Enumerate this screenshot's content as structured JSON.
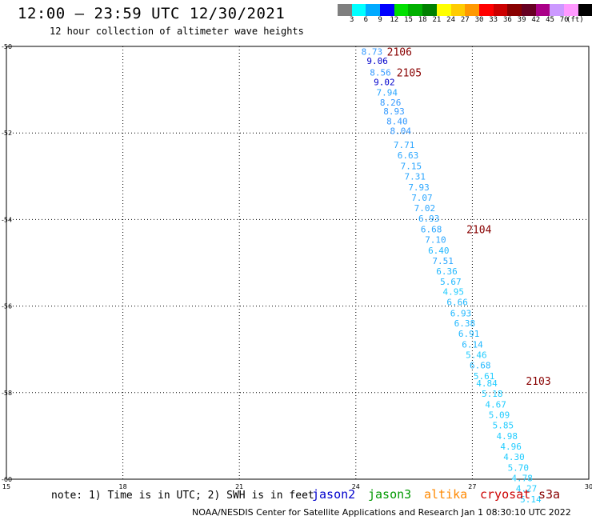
{
  "header": {
    "title": "12:00 – 23:59 UTC 12/30/2021",
    "subtitle": "12 hour collection of altimeter wave heights"
  },
  "colorbar": {
    "colors": [
      "#7f7f7f",
      "#00ffff",
      "#00aaff",
      "#0000ff",
      "#00e000",
      "#00b000",
      "#008000",
      "#ffff00",
      "#ffcc00",
      "#ff9900",
      "#ff0000",
      "#cc0000",
      "#880000",
      "#660022",
      "#aa0088",
      "#cc99ff",
      "#ff99ff",
      "#000000"
    ],
    "labels": [
      "3",
      "6",
      "9",
      "12",
      "15",
      "18",
      "21",
      "24",
      "27",
      "30",
      "33",
      "36",
      "39",
      "42",
      "45",
      "70"
    ],
    "unit": "(ft)"
  },
  "chart_data": {
    "type": "scatter",
    "xlim": [
      15,
      30
    ],
    "ylim": [
      -60,
      -50
    ],
    "xticks": [
      "15",
      "18",
      "21",
      "24",
      "27",
      "30"
    ],
    "yticks": [
      "-50",
      "-52",
      "-54",
      "-56",
      "-58",
      "-60"
    ],
    "grid": true,
    "points": [
      {
        "x": 24.14,
        "y": -50.12,
        "v": "8.73",
        "c": "#3399ff"
      },
      {
        "x": 24.28,
        "y": -50.33,
        "v": "9.06",
        "c": "#0000cc"
      },
      {
        "x": 24.36,
        "y": -50.6,
        "v": "8.56",
        "c": "#3399ff"
      },
      {
        "x": 24.46,
        "y": -50.82,
        "v": "9.02",
        "c": "#0000cc"
      },
      {
        "x": 24.53,
        "y": -51.06,
        "v": "7.94",
        "c": "#2aa6ff"
      },
      {
        "x": 24.62,
        "y": -51.29,
        "v": "8.26",
        "c": "#3399ff"
      },
      {
        "x": 24.71,
        "y": -51.5,
        "v": "8.93",
        "c": "#3399ff"
      },
      {
        "x": 24.79,
        "y": -51.73,
        "v": "8.40",
        "c": "#3399ff"
      },
      {
        "x": 24.88,
        "y": -51.95,
        "v": "8.04",
        "c": "#3399ff"
      },
      {
        "x": 24.97,
        "y": -52.27,
        "v": "7.71",
        "c": "#2aa6ff"
      },
      {
        "x": 25.07,
        "y": -52.51,
        "v": "6.63",
        "c": "#2aa6ff"
      },
      {
        "x": 25.15,
        "y": -52.76,
        "v": "7.15",
        "c": "#2aa6ff"
      },
      {
        "x": 25.25,
        "y": -53.0,
        "v": "7.31",
        "c": "#2aa6ff"
      },
      {
        "x": 25.35,
        "y": -53.25,
        "v": "7.93",
        "c": "#2aa6ff"
      },
      {
        "x": 25.43,
        "y": -53.49,
        "v": "7.07",
        "c": "#2aa6ff"
      },
      {
        "x": 25.5,
        "y": -53.73,
        "v": "7.02",
        "c": "#2aa6ff"
      },
      {
        "x": 25.61,
        "y": -53.97,
        "v": "6.93",
        "c": "#2aa6ff"
      },
      {
        "x": 25.67,
        "y": -54.22,
        "v": "6.68",
        "c": "#2aa6ff"
      },
      {
        "x": 25.78,
        "y": -54.46,
        "v": "7.10",
        "c": "#2aa6ff"
      },
      {
        "x": 25.86,
        "y": -54.71,
        "v": "6.40",
        "c": "#22b8ff"
      },
      {
        "x": 25.97,
        "y": -54.95,
        "v": "7.51",
        "c": "#2aa6ff"
      },
      {
        "x": 26.07,
        "y": -55.19,
        "v": "6.36",
        "c": "#22b8ff"
      },
      {
        "x": 26.17,
        "y": -55.43,
        "v": "5.67",
        "c": "#22b8ff"
      },
      {
        "x": 26.24,
        "y": -55.67,
        "v": "4.95",
        "c": "#22ccff"
      },
      {
        "x": 26.34,
        "y": -55.91,
        "v": "6.66",
        "c": "#22b8ff"
      },
      {
        "x": 26.43,
        "y": -56.16,
        "v": "6.93",
        "c": "#22b8ff"
      },
      {
        "x": 26.53,
        "y": -56.4,
        "v": "6.38",
        "c": "#22b8ff"
      },
      {
        "x": 26.64,
        "y": -56.64,
        "v": "6.91",
        "c": "#22b8ff"
      },
      {
        "x": 26.73,
        "y": -56.89,
        "v": "6.14",
        "c": "#22b8ff"
      },
      {
        "x": 26.83,
        "y": -57.13,
        "v": "5.46",
        "c": "#22ccff"
      },
      {
        "x": 26.93,
        "y": -57.37,
        "v": "6.68",
        "c": "#22b8ff"
      },
      {
        "x": 27.03,
        "y": -57.62,
        "v": "5.61",
        "c": "#22ccff"
      },
      {
        "x": 27.1,
        "y": -57.78,
        "v": "4.84",
        "c": "#22ccff"
      },
      {
        "x": 27.24,
        "y": -58.02,
        "v": "5.18",
        "c": "#22ccff"
      },
      {
        "x": 27.33,
        "y": -58.27,
        "v": "4.67",
        "c": "#22ccff"
      },
      {
        "x": 27.42,
        "y": -58.51,
        "v": "5.09",
        "c": "#22ccff"
      },
      {
        "x": 27.52,
        "y": -58.75,
        "v": "5.85",
        "c": "#22ccff"
      },
      {
        "x": 27.62,
        "y": -59.0,
        "v": "4.98",
        "c": "#22ccff"
      },
      {
        "x": 27.72,
        "y": -59.24,
        "v": "4.96",
        "c": "#22ccff"
      },
      {
        "x": 27.8,
        "y": -59.48,
        "v": "4.30",
        "c": "#22ccff"
      },
      {
        "x": 27.91,
        "y": -59.73,
        "v": "5.70",
        "c": "#22ccff"
      },
      {
        "x": 28.01,
        "y": -59.97,
        "v": "4.78",
        "c": "#22ccff"
      },
      {
        "x": 28.12,
        "y": -60.21,
        "v": "4.27",
        "c": "#22ccff"
      },
      {
        "x": 28.23,
        "y": -60.46,
        "v": "5.14",
        "c": "#22ccff"
      }
    ],
    "time_labels": [
      {
        "x": 24.8,
        "y": -50.12,
        "text": "2106"
      },
      {
        "x": 25.05,
        "y": -50.6,
        "text": "2105"
      },
      {
        "x": 26.85,
        "y": -54.22,
        "text": "2104"
      },
      {
        "x": 28.38,
        "y": -57.73,
        "text": "2103"
      }
    ]
  },
  "footer": {
    "note": "note: 1) Time is in UTC; 2) SWH is in feet",
    "legend": [
      {
        "name": "jason2",
        "color": "#0000cc"
      },
      {
        "name": "jason3",
        "color": "#009900"
      },
      {
        "name": "altika",
        "color": "#ff8800"
      },
      {
        "name": "cryosat",
        "color": "#cc0000"
      },
      {
        "name": "s3a",
        "color": "#880000"
      }
    ],
    "credit": "NOAA/NESDIS Center for Satellite Applications and Research   Jan  1 08:30:10 UTC 2022"
  }
}
